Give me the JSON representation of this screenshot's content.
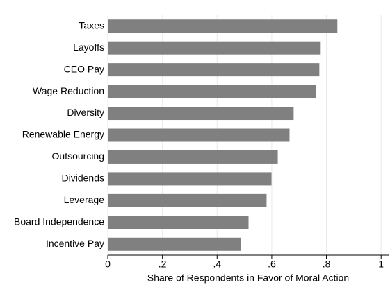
{
  "chart_data": {
    "type": "barh",
    "xlabel": "Share of Respondents in Favor of Moral Action",
    "categories": [
      "Taxes",
      "Layoffs",
      "CEO Pay",
      "Wage Reduction",
      "Diversity",
      "Renewable Energy",
      "Outsourcing",
      "Dividends",
      "Leverage",
      "Board Independence",
      "Incentive Pay"
    ],
    "values": [
      0.84,
      0.779,
      0.774,
      0.761,
      0.68,
      0.665,
      0.622,
      0.599,
      0.581,
      0.515,
      0.487
    ],
    "color": "#808080",
    "xlim": [
      0,
      1.03
    ],
    "xticks": [
      0,
      {
        "value": 0.2,
        "label": ".2"
      },
      {
        "value": 0.4,
        "label": ".4"
      },
      {
        "value": 0.6,
        "label": ".6"
      },
      {
        "value": 0.8,
        "label": ".8"
      },
      1
    ],
    "grid": true
  }
}
